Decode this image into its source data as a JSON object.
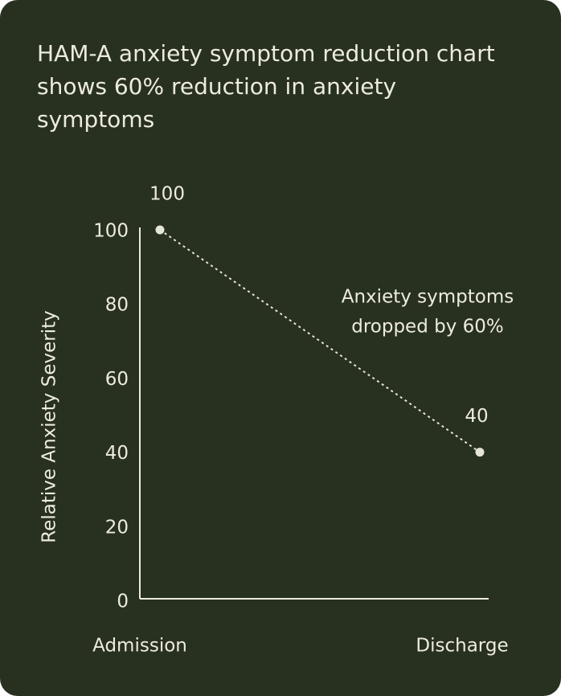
{
  "chart_data": {
    "type": "line",
    "title": "HAM-A anxiety symptom reduction chart shows 60% reduction in anxiety symptoms",
    "y_label": "Relative Anxiety Severity",
    "categories": [
      "Admission",
      "Discharge"
    ],
    "values": [
      100,
      40
    ],
    "color": "#e6e6d6",
    "ylim": [
      0,
      100
    ],
    "yticks": [
      0,
      20,
      40,
      60,
      80,
      100
    ],
    "grid": false,
    "annotation": [
      "Anxiety symptoms",
      "dropped by 60%"
    ]
  }
}
